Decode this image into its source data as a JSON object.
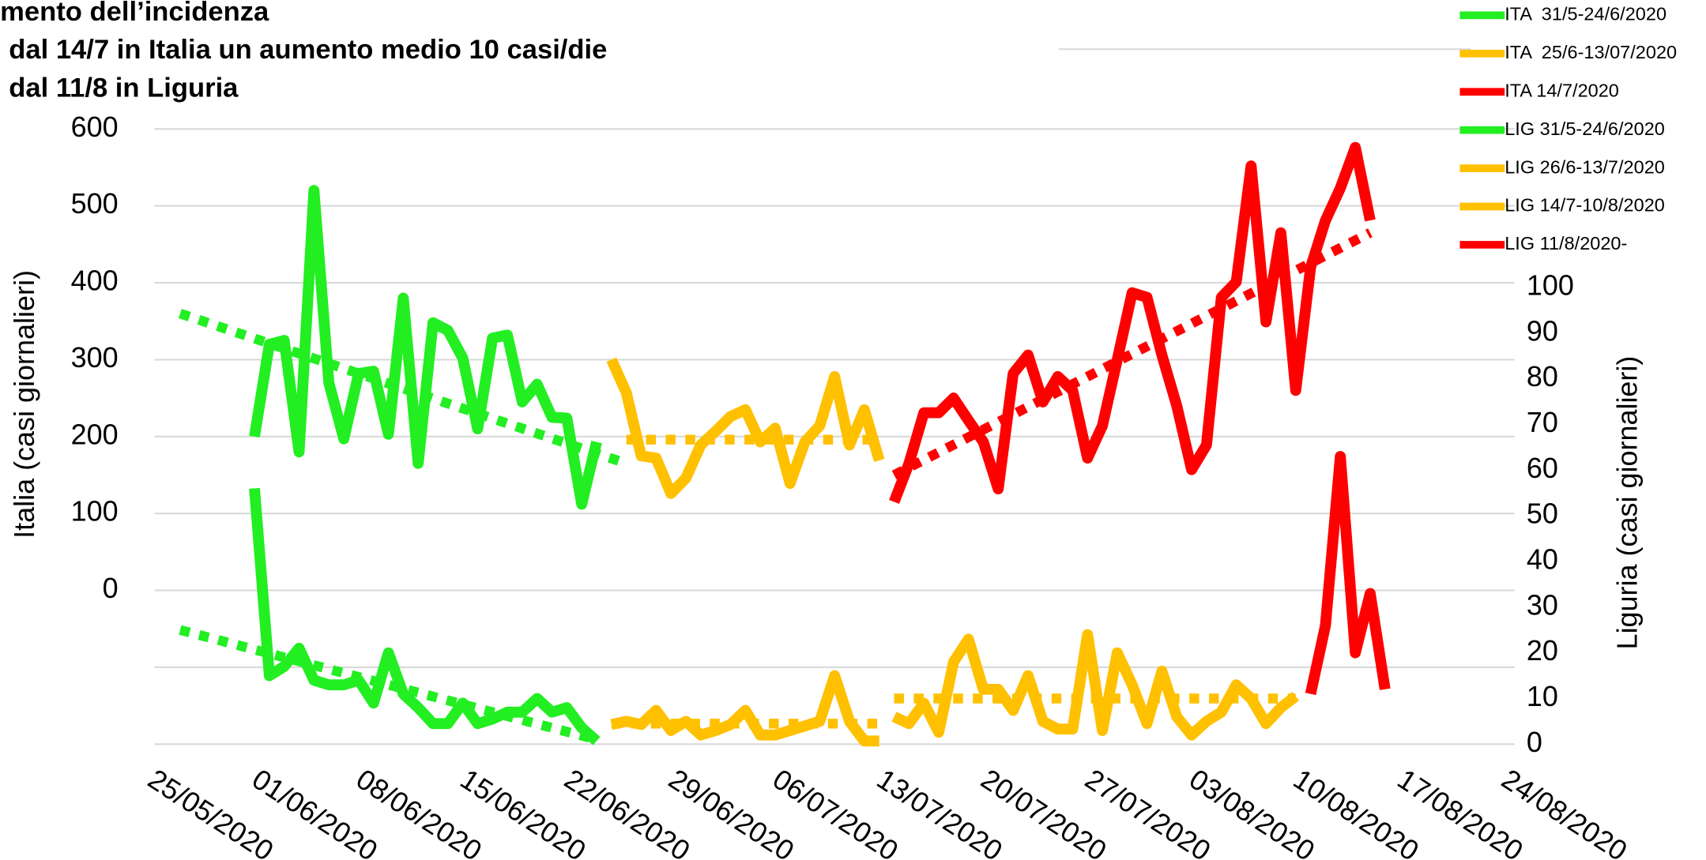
{
  "chart_data": {
    "type": "line",
    "annotations": [
      "mento dell’incidenza",
      "dal 14/7 in Italia un aumento medio 10 casi/die",
      "dal 11/8 in Liguria"
    ],
    "annotation_color": "#ff0000",
    "y_label": "Italia (casi giornalieri)",
    "y2_label": "Liguria (casi giornalieri)",
    "xlim": [
      "25/05/2020",
      "24/08/2020"
    ],
    "xticks": [
      "25/05/2020",
      "01/06/2020",
      "08/06/2020",
      "15/06/2020",
      "22/06/2020",
      "29/06/2020",
      "06/07/2020",
      "13/07/2020",
      "20/07/2020",
      "27/07/2020",
      "03/08/2020",
      "10/08/2020",
      "17/08/2020",
      "24/08/2020"
    ],
    "ylim": [
      -200,
      600
    ],
    "yticks": [
      0,
      100,
      200,
      300,
      400,
      500,
      600
    ],
    "y2lim": [
      0,
      134.7
    ],
    "y2ticks": [
      0,
      10,
      20,
      30,
      40,
      50,
      60,
      70,
      80,
      90,
      100
    ],
    "grid": true,
    "legend": "top-right",
    "series": [
      {
        "name": "ITA  31/5-24/6/2020",
        "color": "#22ee22",
        "x": [
          "31/05/2020",
          "01/06/2020",
          "02/06/2020",
          "03/06/2020",
          "04/06/2020",
          "05/06/2020",
          "06/06/2020",
          "07/06/2020",
          "08/06/2020",
          "09/06/2020",
          "10/06/2020",
          "11/06/2020",
          "12/06/2020",
          "13/06/2020",
          "14/06/2020",
          "15/06/2020",
          "16/06/2020",
          "17/06/2020",
          "18/06/2020",
          "19/06/2020",
          "20/06/2020",
          "21/06/2020",
          "22/06/2020",
          "23/06/2020"
        ],
        "values": [
          200,
          320,
          325,
          180,
          520,
          270,
          197,
          282,
          285,
          203,
          380,
          165,
          348,
          338,
          302,
          210,
          328,
          332,
          245,
          268,
          225,
          224,
          112,
          193
        ]
      },
      {
        "name": "ITA  25/6-13/07/2020",
        "color": "#ffc000",
        "x": [
          "24/06/2020",
          "25/06/2020",
          "26/06/2020",
          "27/06/2020",
          "28/06/2020",
          "29/06/2020",
          "30/06/2020",
          "01/07/2020",
          "02/07/2020",
          "03/07/2020",
          "04/07/2020",
          "05/07/2020",
          "06/07/2020",
          "07/07/2020",
          "08/07/2020",
          "09/07/2020",
          "10/07/2020",
          "11/07/2020",
          "12/07/2020"
        ],
        "values": [
          300,
          257,
          175,
          172,
          126,
          146,
          189,
          207,
          226,
          235,
          193,
          211,
          139,
          193,
          214,
          278,
          189,
          235,
          169
        ]
      },
      {
        "name": "ITA 14/7/2020",
        "color": "#ff0000",
        "x": [
          "13/07/2020",
          "14/07/2020",
          "15/07/2020",
          "16/07/2020",
          "17/07/2020",
          "18/07/2020",
          "19/07/2020",
          "20/07/2020",
          "21/07/2020",
          "22/07/2020",
          "23/07/2020",
          "24/07/2020",
          "25/07/2020",
          "26/07/2020",
          "27/07/2020",
          "28/07/2020",
          "29/07/2020",
          "30/07/2020",
          "31/07/2020",
          "01/08/2020",
          "02/08/2020",
          "03/08/2020",
          "04/08/2020",
          "05/08/2020",
          "06/08/2020",
          "07/08/2020",
          "08/08/2020",
          "09/08/2020",
          "10/08/2020",
          "11/08/2020",
          "12/08/2020",
          "13/08/2020",
          "14/08/2020"
        ],
        "values": [
          115,
          165,
          231,
          231,
          250,
          221,
          193,
          132,
          282,
          306,
          245,
          278,
          260,
          172,
          214,
          300,
          387,
          381,
          306,
          240,
          157,
          189,
          381,
          401,
          552,
          349,
          465,
          260,
          420,
          481,
          523,
          576,
          481
        ]
      },
      {
        "name": "LIG 31/5-24/6/2020",
        "color": "#22ee22",
        "axis": "y2",
        "x": [
          "31/05/2020",
          "01/06/2020",
          "02/06/2020",
          "03/06/2020",
          "04/06/2020",
          "05/06/2020",
          "06/06/2020",
          "07/06/2020",
          "08/06/2020",
          "09/06/2020",
          "10/06/2020",
          "11/06/2020",
          "12/06/2020",
          "13/06/2020",
          "14/06/2020",
          "15/06/2020",
          "16/06/2020",
          "17/06/2020",
          "18/06/2020",
          "19/06/2020",
          "20/06/2020",
          "21/06/2020",
          "22/06/2020",
          "23/06/2020"
        ],
        "values": [
          56,
          15,
          17,
          21,
          14,
          13,
          13,
          14,
          9,
          20,
          11,
          8,
          4.5,
          4.5,
          9,
          4.5,
          5.5,
          7,
          7,
          10,
          7,
          8,
          3.6,
          0.7
        ]
      },
      {
        "name": "LIG 26/6-13/7/2020",
        "color": "#ffc000",
        "axis": "y2",
        "x": [
          "24/06/2020",
          "25/06/2020",
          "26/06/2020",
          "27/06/2020",
          "28/06/2020",
          "29/06/2020",
          "30/06/2020",
          "01/07/2020",
          "02/07/2020",
          "03/07/2020",
          "04/07/2020",
          "05/07/2020",
          "06/07/2020",
          "07/07/2020",
          "08/07/2020",
          "09/07/2020",
          "10/07/2020",
          "11/07/2020",
          "12/07/2020"
        ],
        "values": [
          4.3,
          5,
          4.3,
          7.4,
          3,
          5,
          2,
          3,
          4.3,
          7.4,
          2,
          2,
          3,
          4,
          5,
          15,
          5,
          0.7,
          0.7
        ]
      },
      {
        "name": "LIG 14/7-10/8/2020",
        "color": "#ffc000",
        "axis": "y2",
        "x": [
          "13/07/2020",
          "14/07/2020",
          "15/07/2020",
          "16/07/2020",
          "17/07/2020",
          "18/07/2020",
          "19/07/2020",
          "20/07/2020",
          "21/07/2020",
          "22/07/2020",
          "23/07/2020",
          "24/07/2020",
          "25/07/2020",
          "26/07/2020",
          "27/07/2020",
          "28/07/2020",
          "29/07/2020",
          "30/07/2020",
          "31/07/2020",
          "01/08/2020",
          "02/08/2020",
          "03/08/2020",
          "04/08/2020",
          "05/08/2020",
          "06/08/2020",
          "07/08/2020",
          "08/08/2020",
          "09/08/2020"
        ],
        "values": [
          6,
          4.5,
          9,
          2.6,
          18,
          23,
          12,
          12,
          7.4,
          15,
          5,
          3.3,
          3.3,
          24,
          3,
          20,
          13,
          4.5,
          16,
          6,
          2,
          5,
          7,
          13,
          10,
          4.5,
          8,
          10.5
        ]
      },
      {
        "name": "LIG 11/8/2020-",
        "color": "#ff0000",
        "axis": "y2",
        "x": [
          "10/08/2020",
          "11/08/2020",
          "12/08/2020",
          "13/08/2020",
          "14/08/2020",
          "15/08/2020"
        ],
        "values": [
          11,
          26,
          63,
          20,
          33,
          12
        ]
      },
      {
        "color": "#22ee22",
        "dashed": true,
        "x": [
          "26/05/2020",
          "25/06/2020"
        ],
        "values": [
          360,
          165
        ]
      },
      {
        "color": "#ffc000",
        "dashed": true,
        "x": [
          "25/06/2020",
          "12/07/2020"
        ],
        "values": [
          196,
          196
        ]
      },
      {
        "color": "#ff0000",
        "dashed": true,
        "x": [
          "13/07/2020",
          "14/08/2020"
        ],
        "values": [
          150,
          465
        ]
      },
      {
        "color": "#22ee22",
        "dashed": true,
        "axis": "y2",
        "x": [
          "26/05/2020",
          "23/06/2020"
        ],
        "values": [
          25,
          1
        ]
      },
      {
        "color": "#ffc000",
        "dashed": true,
        "axis": "y2",
        "x": [
          "24/06/2020",
          "12/07/2020"
        ],
        "values": [
          4.5,
          4.5
        ]
      },
      {
        "color": "#ffc000",
        "dashed": true,
        "axis": "y2",
        "x": [
          "13/07/2020",
          "09/08/2020"
        ],
        "values": [
          10,
          10
        ]
      }
    ]
  }
}
